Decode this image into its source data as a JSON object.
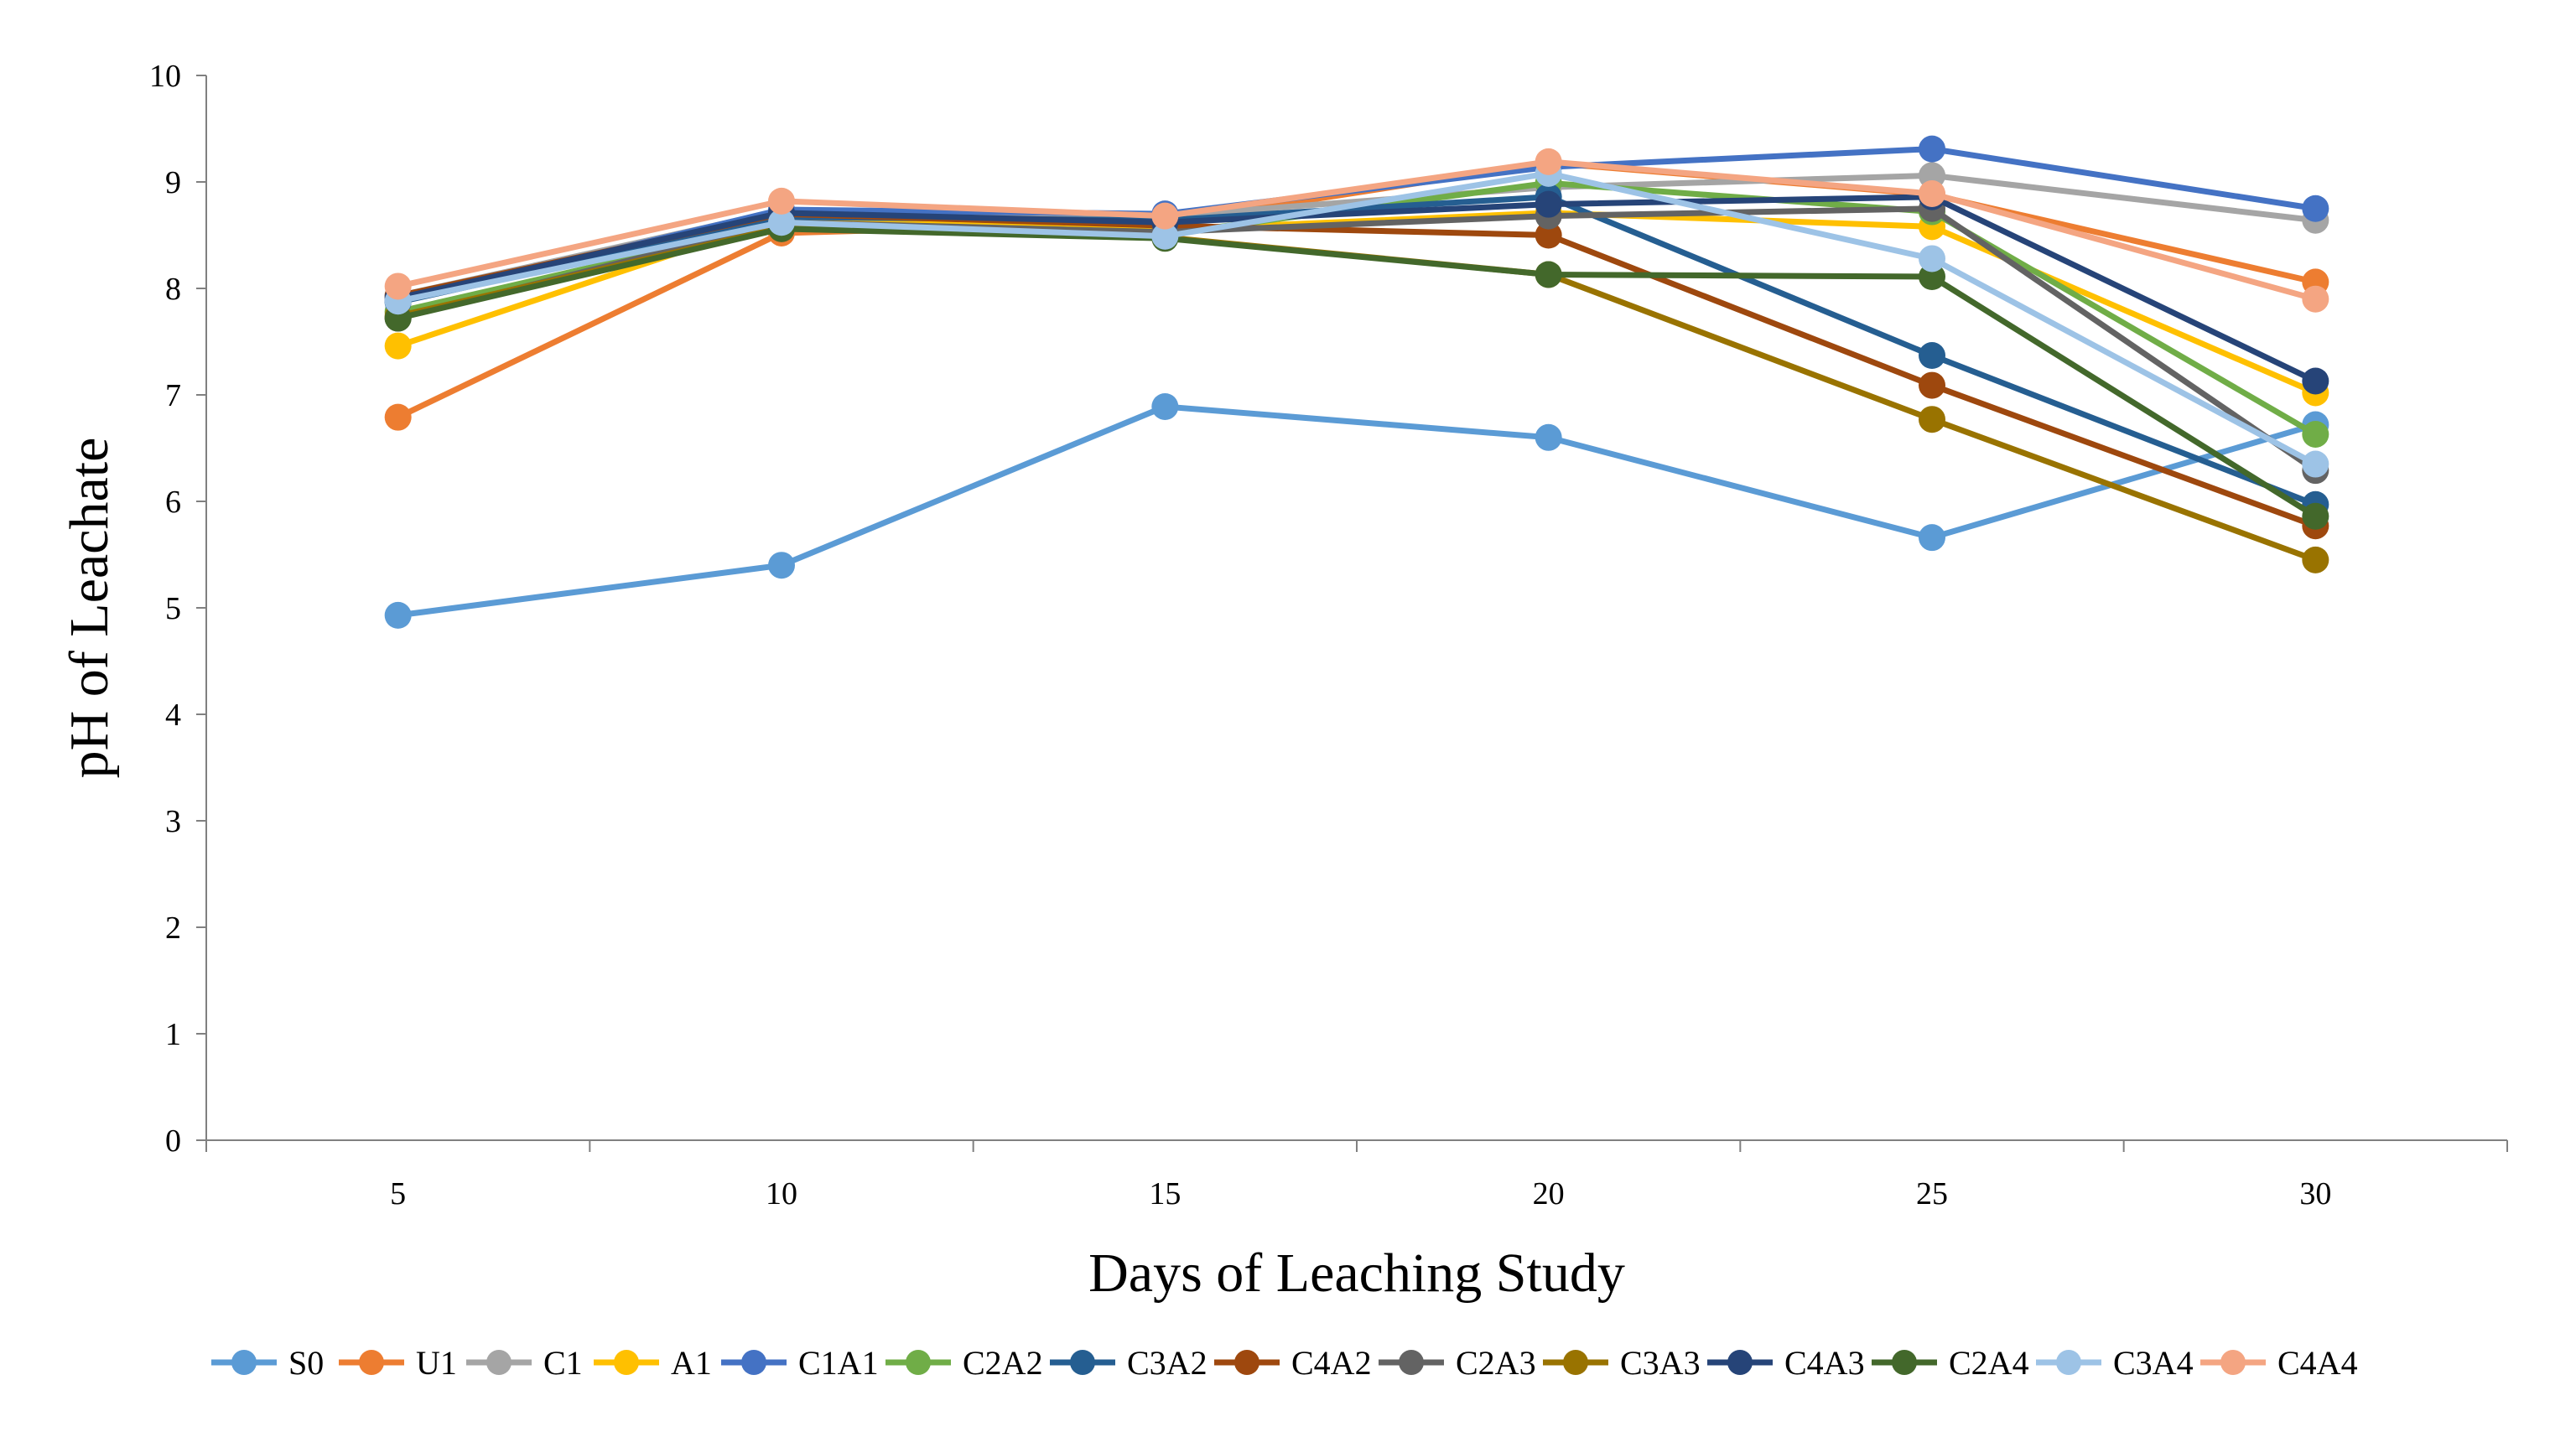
{
  "chart_data": {
    "type": "line",
    "title": "",
    "xlabel": "Days of Leaching Study",
    "ylabel": "pH of Leachate",
    "categories": [
      "5",
      "10",
      "15",
      "20",
      "25",
      "30"
    ],
    "ylim": [
      0,
      10
    ],
    "yticks": [
      "0",
      "1",
      "2",
      "3",
      "4",
      "5",
      "6",
      "7",
      "8",
      "9",
      "10"
    ],
    "grid": false,
    "legend_position": "bottom",
    "series": [
      {
        "name": "S0",
        "color": "#5B9BD5",
        "values": [
          4.93,
          5.4,
          6.89,
          6.6,
          5.66,
          6.72
        ]
      },
      {
        "name": "U1",
        "color": "#ED7D31",
        "values": [
          6.79,
          8.52,
          8.62,
          9.18,
          8.88,
          8.06
        ]
      },
      {
        "name": "C1",
        "color": "#A5A5A5",
        "values": [
          7.93,
          8.73,
          8.68,
          8.95,
          9.06,
          8.64
        ]
      },
      {
        "name": "A1",
        "color": "#FFC000",
        "values": [
          7.46,
          8.66,
          8.55,
          8.71,
          8.58,
          7.02
        ]
      },
      {
        "name": "C1A1",
        "color": "#4472C4",
        "values": [
          7.88,
          8.74,
          8.7,
          9.14,
          9.31,
          8.75
        ]
      },
      {
        "name": "C2A2",
        "color": "#70AD47",
        "values": [
          7.78,
          8.61,
          8.51,
          8.99,
          8.72,
          6.63
        ]
      },
      {
        "name": "C3A2",
        "color": "#255E91",
        "values": [
          7.87,
          8.67,
          8.64,
          8.86,
          7.37,
          5.97
        ]
      },
      {
        "name": "C4A2",
        "color": "#9E480E",
        "values": [
          7.93,
          8.7,
          8.59,
          8.5,
          7.09,
          5.77
        ]
      },
      {
        "name": "C2A3",
        "color": "#636363",
        "values": [
          7.72,
          8.62,
          8.53,
          8.68,
          8.75,
          6.29
        ]
      },
      {
        "name": "C3A3",
        "color": "#997300",
        "values": [
          7.74,
          8.57,
          8.48,
          8.13,
          6.77,
          5.45
        ]
      },
      {
        "name": "C4A3",
        "color": "#264478",
        "values": [
          7.91,
          8.71,
          8.62,
          8.79,
          8.86,
          7.13
        ]
      },
      {
        "name": "C2A4",
        "color": "#43682B",
        "values": [
          7.72,
          8.56,
          8.47,
          8.13,
          8.11,
          5.86
        ]
      },
      {
        "name": "C3A4",
        "color": "#9DC3E6",
        "values": [
          7.88,
          8.62,
          8.49,
          9.08,
          8.28,
          6.35
        ]
      },
      {
        "name": "C4A4",
        "color": "#F4A582",
        "values": [
          8.02,
          8.82,
          8.68,
          9.19,
          8.89,
          7.9
        ]
      }
    ]
  }
}
